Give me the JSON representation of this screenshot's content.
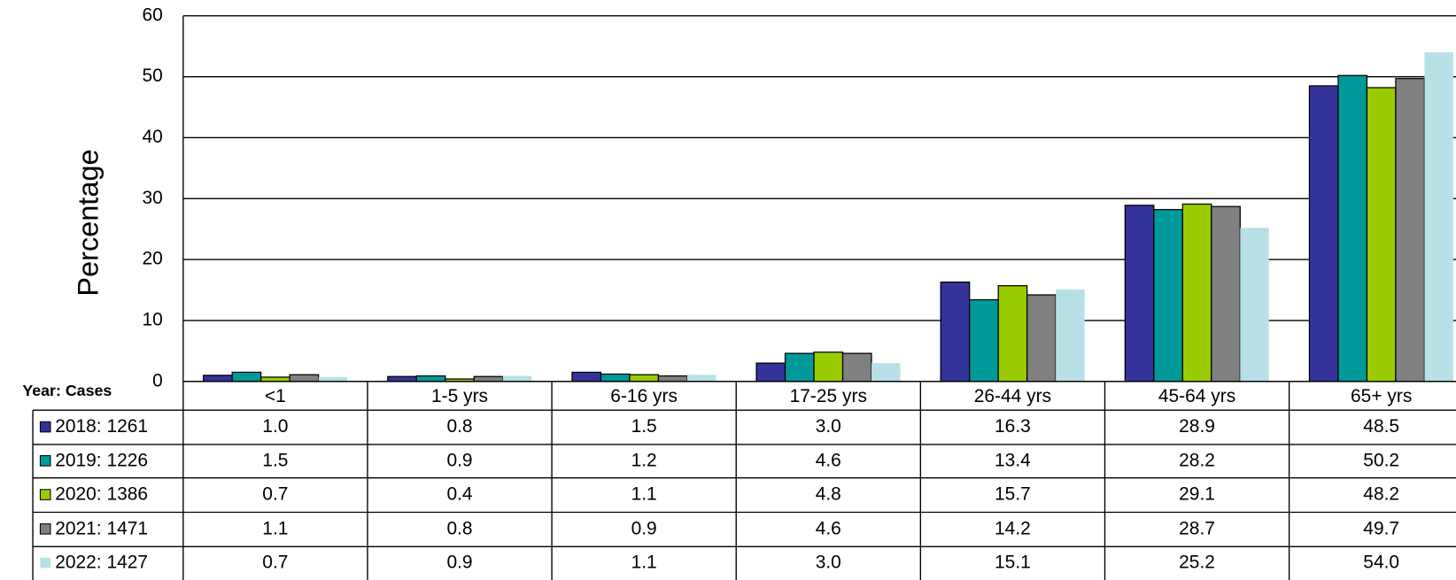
{
  "chart_data": {
    "type": "bar",
    "y_label": "Percentage",
    "table_header": "Year:  Cases",
    "categories": [
      "<1",
      "1-5 yrs",
      "6-16 yrs",
      "17-25 yrs",
      "26-44 yrs",
      "45-64 yrs",
      "65+ yrs"
    ],
    "series": [
      {
        "name": "2018:  1261",
        "color": "#333399",
        "values": [
          1.0,
          0.8,
          1.5,
          3.0,
          16.3,
          28.9,
          48.5
        ],
        "value_labels": [
          "1.0",
          "0.8",
          "1.5",
          "3.0",
          "16.3",
          "28.9",
          "48.5"
        ]
      },
      {
        "name": "2019:  1226",
        "color": "#009999",
        "values": [
          1.5,
          0.9,
          1.2,
          4.6,
          13.4,
          28.2,
          50.2
        ],
        "value_labels": [
          "1.5",
          "0.9",
          "1.2",
          "4.6",
          "13.4",
          "28.2",
          "50.2"
        ]
      },
      {
        "name": "2020:  1386",
        "color": "#99cc00",
        "values": [
          0.7,
          0.4,
          1.1,
          4.8,
          15.7,
          29.1,
          48.2
        ],
        "value_labels": [
          "0.7",
          "0.4",
          "1.1",
          "4.8",
          "15.7",
          "29.1",
          "48.2"
        ]
      },
      {
        "name": "2021:  1471",
        "color": "#808080",
        "values": [
          1.1,
          0.8,
          0.9,
          4.6,
          14.2,
          28.7,
          49.7
        ],
        "value_labels": [
          "1.1",
          "0.8",
          "0.9",
          "4.6",
          "14.2",
          "28.7",
          "49.7"
        ]
      },
      {
        "name": "2022:  1427",
        "color": "#b7e1e6",
        "values": [
          0.7,
          0.9,
          1.1,
          3.0,
          15.1,
          25.2,
          54.0
        ],
        "value_labels": [
          "0.7",
          "0.9",
          "1.1",
          "3.0",
          "15.1",
          "25.2",
          "54.0"
        ]
      }
    ],
    "ylim": [
      0,
      60
    ],
    "yticks": [
      0,
      10,
      20,
      30,
      40,
      50,
      60
    ],
    "grid": true
  }
}
